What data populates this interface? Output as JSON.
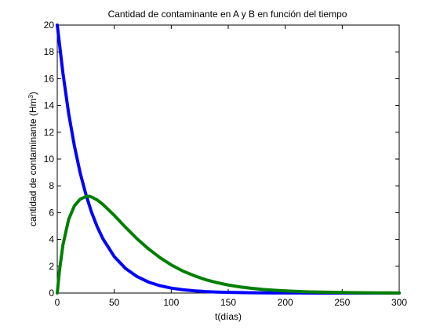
{
  "chart_data": {
    "type": "line",
    "title": "Cantidad de contaminante en A y B en función del tiempo",
    "xlabel": "t(días)",
    "ylabel": {
      "prefix": "cantidad de contaminante (Hm",
      "sup": "3",
      "suffix": ")"
    },
    "xlim": [
      0,
      300
    ],
    "ylim": [
      0,
      20
    ],
    "xticks": [
      0,
      50,
      100,
      150,
      200,
      250,
      300
    ],
    "yticks": [
      0,
      2,
      4,
      6,
      8,
      10,
      12,
      14,
      16,
      18,
      20
    ],
    "grid": false,
    "legend": "none",
    "series": [
      {
        "color": "#0000ff",
        "x": [
          0,
          5,
          10,
          15,
          20,
          25,
          30,
          35,
          40,
          50,
          60,
          70,
          80,
          90,
          100,
          110,
          120,
          130,
          140,
          150,
          160,
          170,
          180,
          190,
          200,
          220,
          240,
          260,
          280,
          300
        ],
        "y": [
          20,
          16.4,
          13.4,
          11.0,
          9.0,
          7.4,
          6.05,
          4.96,
          4.06,
          2.72,
          1.83,
          1.23,
          0.82,
          0.55,
          0.37,
          0.25,
          0.17,
          0.11,
          0.075,
          0.05,
          0.034,
          0.023,
          0.015,
          0.01,
          0.007,
          0.003,
          0.001,
          0.0006,
          0.0003,
          0.0001
        ]
      },
      {
        "color": "#007f00",
        "x": [
          0,
          2,
          5,
          10,
          15,
          20,
          25,
          28,
          30,
          35,
          40,
          50,
          60,
          70,
          80,
          90,
          100,
          110,
          120,
          130,
          140,
          150,
          160,
          170,
          180,
          190,
          200,
          220,
          240,
          260,
          280,
          300
        ],
        "y": [
          0,
          1.7,
          3.6,
          5.5,
          6.5,
          7.0,
          7.2,
          7.22,
          7.17,
          6.95,
          6.62,
          5.8,
          4.9,
          4.05,
          3.3,
          2.65,
          2.1,
          1.65,
          1.3,
          1.0,
          0.78,
          0.6,
          0.46,
          0.36,
          0.27,
          0.21,
          0.16,
          0.09,
          0.055,
          0.03,
          0.018,
          0.01
        ]
      }
    ]
  }
}
